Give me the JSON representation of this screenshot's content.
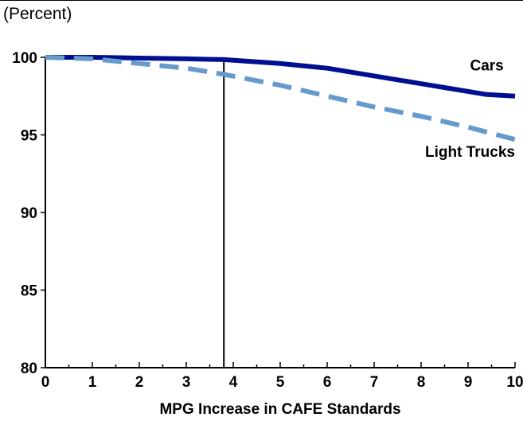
{
  "unit_label": "(Percent)",
  "chart_data": {
    "type": "line",
    "title": "",
    "xlabel": "MPG Increase in CAFE Standards",
    "ylabel": "",
    "xlim": [
      0,
      10
    ],
    "ylim": [
      80,
      100
    ],
    "x_ticks": [
      0,
      1,
      2,
      3,
      4,
      5,
      6,
      7,
      8,
      9,
      10
    ],
    "y_ticks": [
      80,
      85,
      90,
      95,
      100
    ],
    "grid": false,
    "reference_line_x": 3.8,
    "series": [
      {
        "name": "Cars",
        "color": "#000f8f",
        "style": "solid",
        "x": [
          0,
          1,
          2,
          3,
          3.8,
          5,
          6,
          7,
          8,
          8.7,
          9.4,
          10
        ],
        "y": [
          100,
          100,
          99.95,
          99.9,
          99.85,
          99.6,
          99.3,
          98.8,
          98.3,
          97.95,
          97.6,
          97.5
        ]
      },
      {
        "name": "Light Trucks",
        "color": "#6699cc",
        "style": "dashed",
        "x": [
          0,
          1,
          2,
          3,
          3.8,
          5,
          6,
          7,
          8,
          9,
          10
        ],
        "y": [
          100,
          99.9,
          99.6,
          99.3,
          98.9,
          98.2,
          97.5,
          96.8,
          96.2,
          95.5,
          94.7
        ]
      }
    ]
  }
}
